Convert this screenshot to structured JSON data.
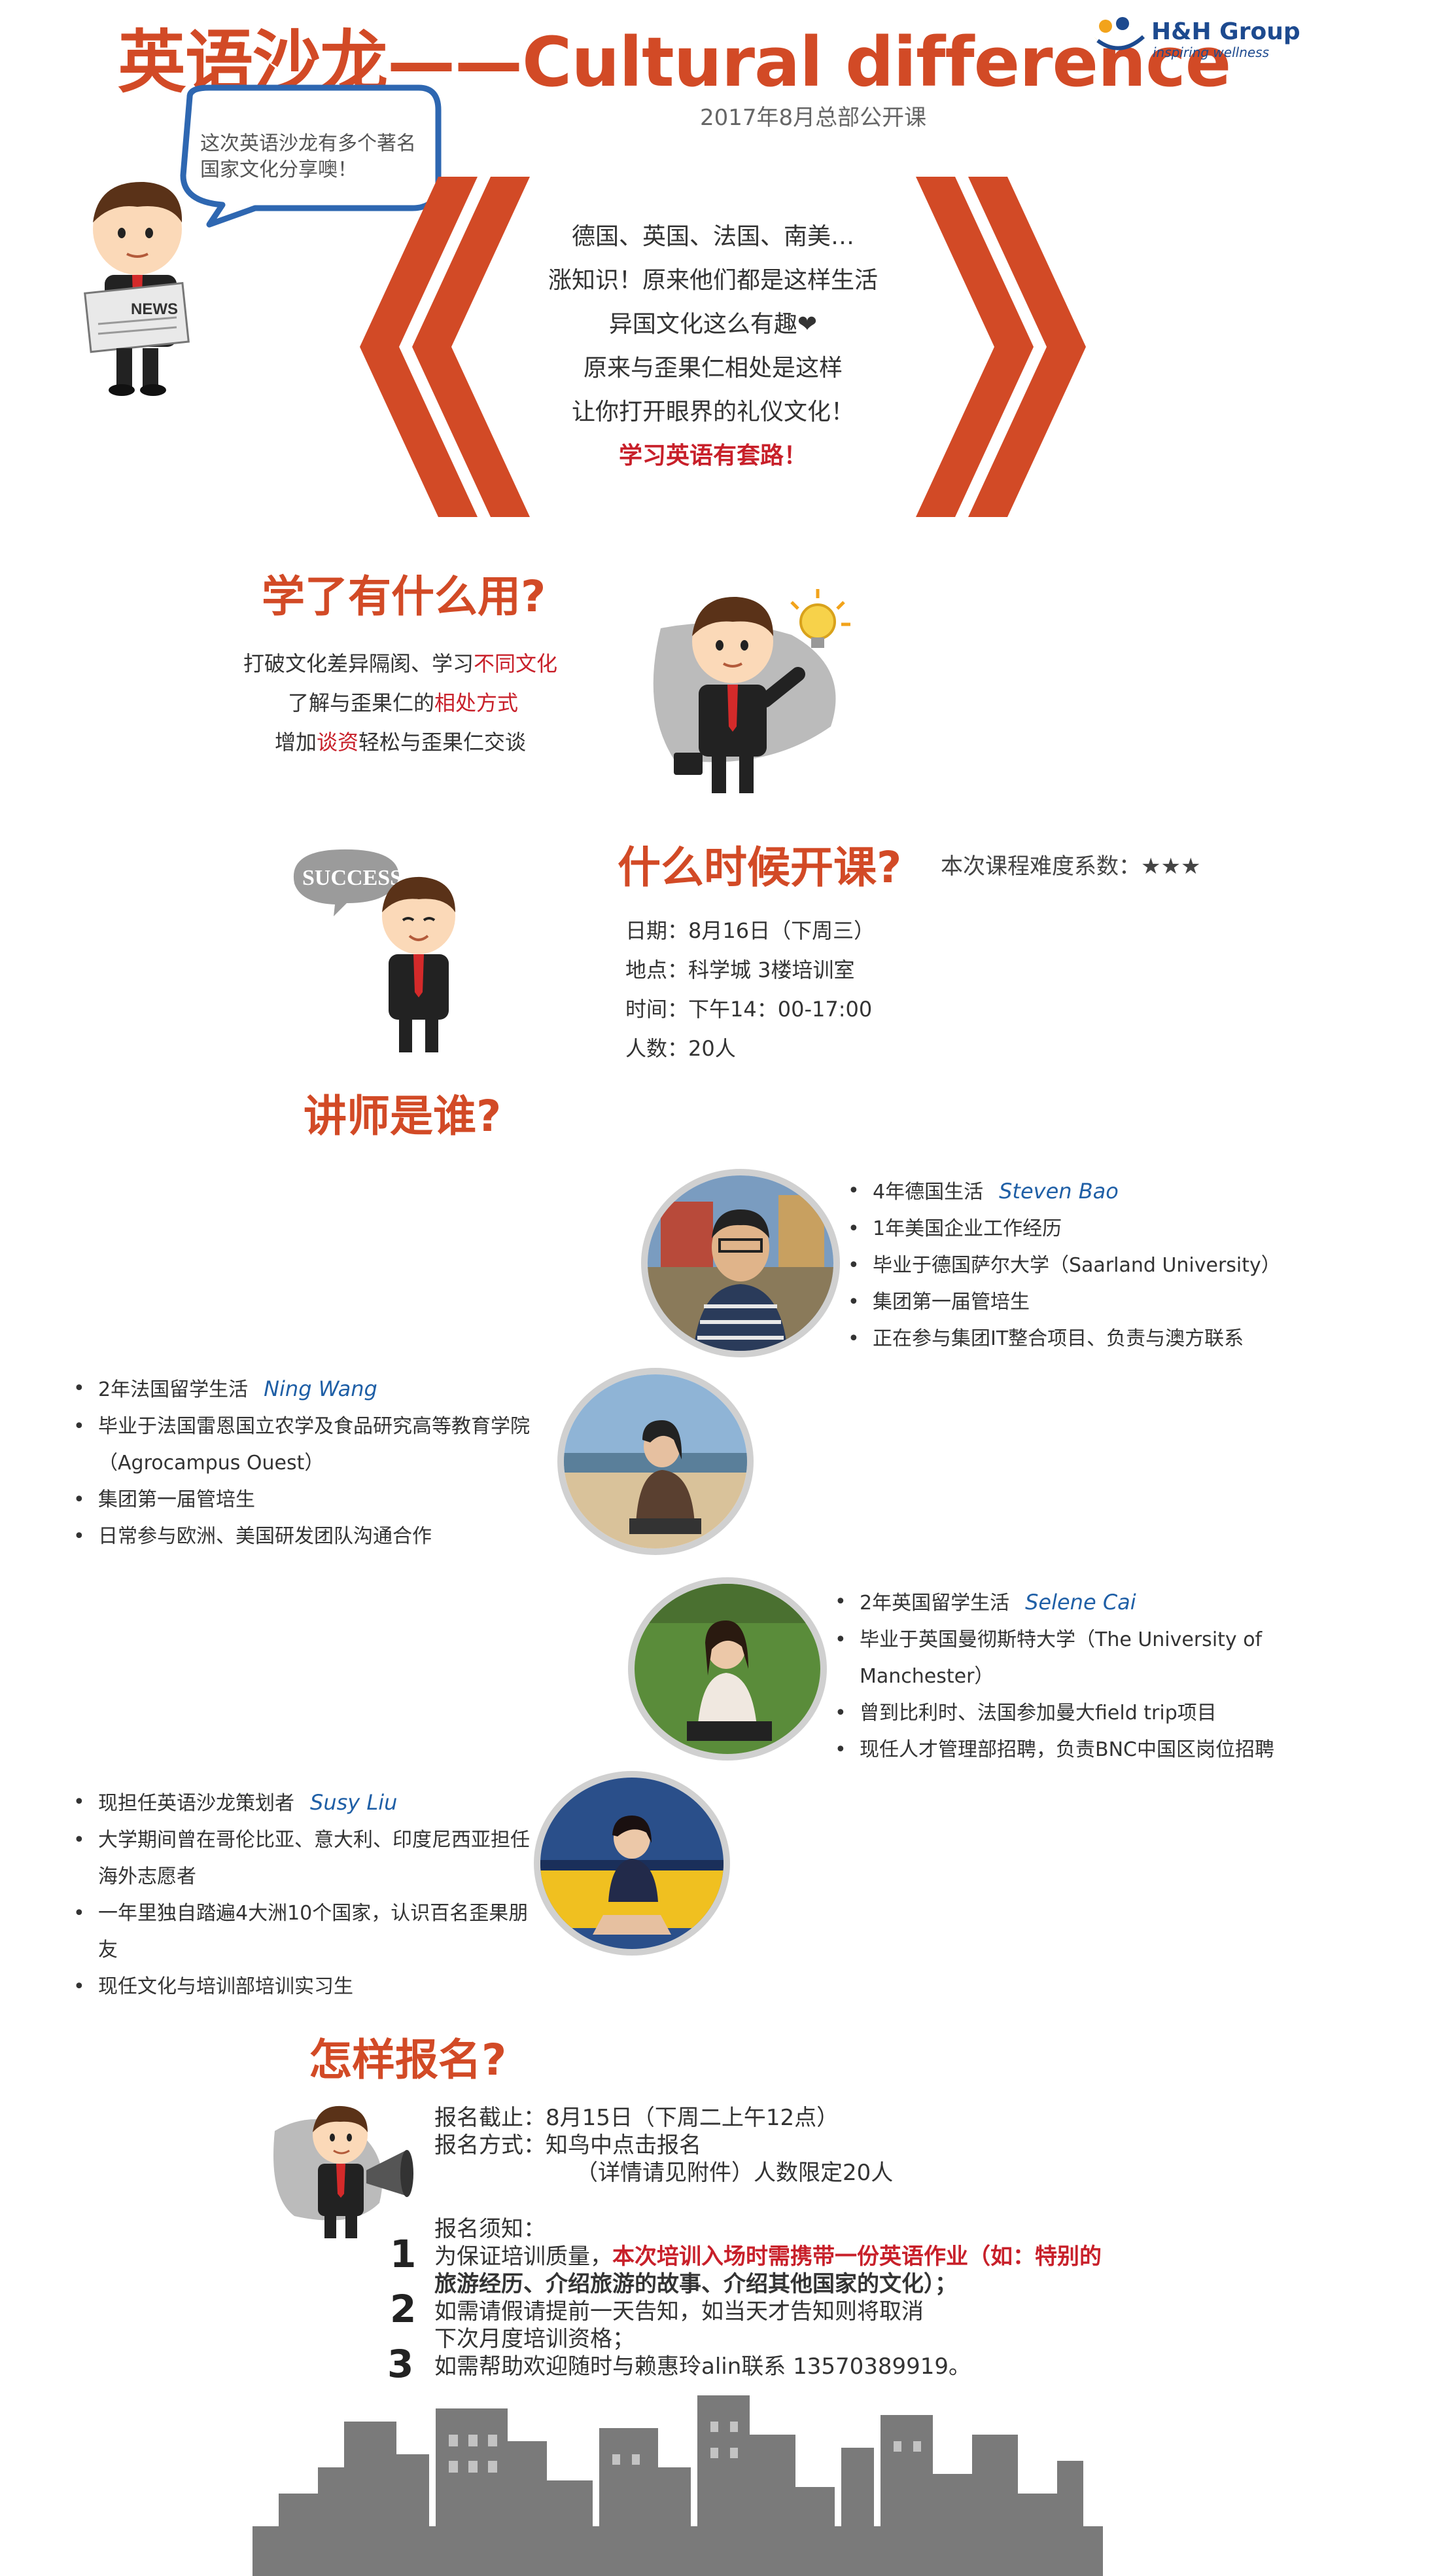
{
  "header": {
    "title": "英语沙龙——Cultural difference",
    "subtitle": "2017年8月总部公开课",
    "logo_name": "H&H Group",
    "logo_tagline": "inspiring wellness"
  },
  "bubble": {
    "text": "这次英语沙龙有多个著名国家文化分享噢！",
    "newspaper": "NEWS"
  },
  "intro": {
    "lines": [
      "德国、英国、法国、南美…",
      "涨知识！原来他们都是这样生活",
      "异国文化这么有趣❤",
      "原来与歪果仁相处是这样",
      "让你打开眼界的礼仪文化！"
    ],
    "highlight": "学习英语有套路！"
  },
  "usage": {
    "heading": "学了有什么用?",
    "line1_pre": "打破文化差异隔阂、学习",
    "line1_hl": "不同文化",
    "line2_pre": "了解与歪果仁的",
    "line2_hl": "相处方式",
    "line3_pre": "增加",
    "line3_hl": "谈资",
    "line3_post": "轻松与歪果仁交谈"
  },
  "schedule": {
    "heading": "什么时候开课?",
    "difficulty": "本次课程难度系数：★★★",
    "success_text": "SUCCESS",
    "date": "日期：8月16日（下周三）",
    "place": "地点：科学城 3楼培训室",
    "time": "时间：下午14：00-17:00",
    "count": "人数：20人"
  },
  "teachers": {
    "heading": "讲师是谁?",
    "list": [
      {
        "name": "Steven Bao",
        "items": [
          "4年德国生活",
          "1年美国企业工作经历",
          "毕业于德国萨尔大学（Saarland University）",
          "集团第一届管培生",
          "正在参与集团IT整合项目、负责与澳方联系"
        ]
      },
      {
        "name": "Ning  Wang",
        "items": [
          "2年法国留学生活",
          "毕业于法国雷恩国立农学及食品研究高等教育学院（Agrocampus Ouest）",
          "集团第一届管培生",
          "日常参与欧洲、美国研发团队沟通合作"
        ]
      },
      {
        "name": "Selene Cai",
        "items": [
          "2年英国留学生活",
          "毕业于英国曼彻斯特大学（The University of Manchester）",
          "曾到比利时、法国参加曼大field trip项目",
          "现任人才管理部招聘，负责BNC中国区岗位招聘"
        ]
      },
      {
        "name": "Susy Liu",
        "items": [
          "现担任英语沙龙策划者",
          "大学期间曾在哥伦比亚、意大利、印度尼西亚担任海外志愿者",
          "一年里独自踏遍4大洲10个国家，认识百名歪果朋友",
          "现任文化与培训部培训实习生"
        ]
      }
    ]
  },
  "signup": {
    "heading": "怎样报名?",
    "deadline": "报名截止：8月15日（下周二上午12点）",
    "method": "报名方式：知鸟中点击报名",
    "method_note": "（详情请见附件）人数限定20人",
    "notice_title": "报名须知：",
    "n1": "1",
    "item1_pre": "为保证培训质量，",
    "item1_hl_a": "本次培训入场时需携带一份英语作业（如：特别的",
    "item1_hl_b": "旅游经历、介绍旅游的故事、介绍其他国家的文化）；",
    "n2": "2",
    "item2": "如需请假请提前一天告知，如当天才告知则将取消",
    "item2b": "下次月度培训资格；",
    "n3": "3",
    "item3": "如需帮助欢迎随时与赖惠玲alin联系 13570389919。"
  },
  "colors": {
    "accent": "#d24a26",
    "highlight_red": "#c8202a",
    "name_blue": "#1f5fa6",
    "skyline_grey": "#7a7a7a"
  }
}
